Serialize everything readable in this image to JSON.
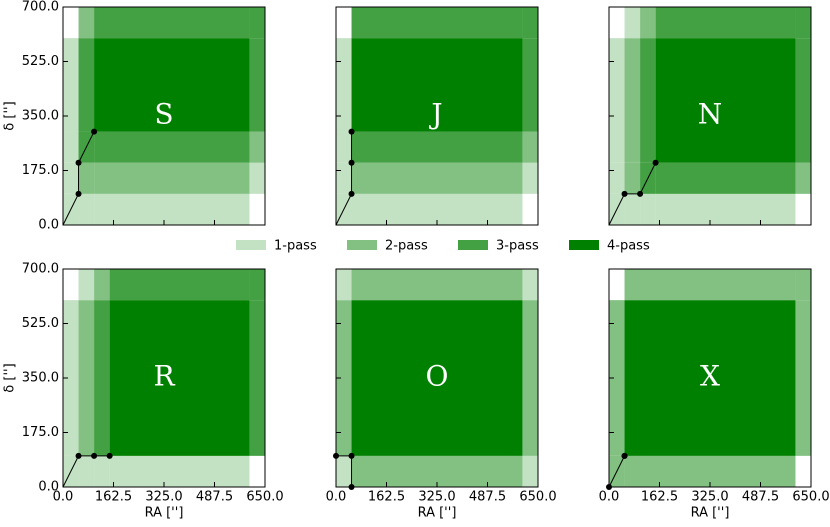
{
  "chart_data": [
    {
      "type": "dither",
      "title": "S",
      "x": [
        0,
        50,
        50,
        100
      ],
      "y": [
        0,
        100,
        200,
        300
      ],
      "field": [
        600,
        600
      ],
      "xlim": [
        0,
        650
      ],
      "ylim": [
        0,
        700
      ],
      "xticks": [
        {
          "value": 0,
          "label": "0.0"
        },
        162.5,
        {
          "value": 325,
          "label": "325.0"
        },
        487.5,
        {
          "value": 650,
          "label": "650.0"
        }
      ],
      "yticks": [
        {
          "value": 0,
          "label": "0.0"
        },
        {
          "value": 175,
          "label": "175.0"
        },
        {
          "value": 350,
          "label": "350.0"
        },
        {
          "value": 525,
          "label": "525.0"
        },
        {
          "value": 700,
          "label": "700.0"
        }
      ],
      "ylabel": "δ ['']"
    },
    {
      "type": "dither",
      "title": "J",
      "x": [
        0,
        50,
        50,
        50
      ],
      "y": [
        0,
        100,
        200,
        300
      ],
      "field": [
        600,
        600
      ],
      "xlim": [
        0,
        650
      ],
      "ylim": [
        0,
        700
      ],
      "xticks": [
        {
          "value": 0,
          "label": "0.0"
        },
        162.5,
        {
          "value": 325,
          "label": "325.0"
        },
        487.5,
        {
          "value": 650,
          "label": "650.0"
        }
      ],
      "yticks": [
        {
          "value": 0,
          "label": "0.0"
        },
        {
          "value": 175,
          "label": "175.0"
        },
        {
          "value": 350,
          "label": "350.0"
        },
        {
          "value": 525,
          "label": "525.0"
        },
        {
          "value": 700,
          "label": "700.0"
        }
      ]
    },
    {
      "type": "dither",
      "title": "N",
      "x": [
        0,
        50,
        100,
        150
      ],
      "y": [
        0,
        100,
        100,
        200
      ],
      "field": [
        600,
        600
      ],
      "xlim": [
        0,
        650
      ],
      "ylim": [
        0,
        700
      ],
      "xticks": [
        {
          "value": 0,
          "label": "0.0"
        },
        162.5,
        {
          "value": 325,
          "label": "325.0"
        },
        487.5,
        {
          "value": 650,
          "label": "650.0"
        }
      ],
      "yticks": [
        {
          "value": 0,
          "label": "0.0"
        },
        {
          "value": 175,
          "label": "175.0"
        },
        {
          "value": 350,
          "label": "350.0"
        },
        {
          "value": 525,
          "label": "525.0"
        },
        {
          "value": 700,
          "label": "700.0"
        }
      ]
    },
    {
      "type": "dither",
      "title": "R",
      "x": [
        0,
        50,
        100,
        150
      ],
      "y": [
        0,
        100,
        100,
        100
      ],
      "field": [
        600,
        600
      ],
      "xlim": [
        0,
        650
      ],
      "ylim": [
        0,
        700
      ],
      "xticks": [
        {
          "value": 0,
          "label": "0.0"
        },
        162.5,
        {
          "value": 325,
          "label": "325.0"
        },
        487.5,
        {
          "value": 650,
          "label": "650.0"
        }
      ],
      "yticks": [
        {
          "value": 0,
          "label": "0.0"
        },
        {
          "value": 175,
          "label": "175.0"
        },
        {
          "value": 350,
          "label": "350.0"
        },
        {
          "value": 525,
          "label": "525.0"
        },
        {
          "value": 700,
          "label": "700.0"
        }
      ],
      "ylabel": "δ ['']",
      "xlabel": "RA ['']"
    },
    {
      "type": "dither",
      "title": "O",
      "x": [
        0,
        0,
        50,
        50
      ],
      "y": [
        0,
        100,
        100,
        0
      ],
      "field": [
        600,
        600
      ],
      "xlim": [
        0,
        650
      ],
      "ylim": [
        0,
        700
      ],
      "xticks": [
        {
          "value": 0,
          "label": "0.0"
        },
        162.5,
        {
          "value": 325,
          "label": "325.0"
        },
        487.5,
        {
          "value": 650,
          "label": "650.0"
        }
      ],
      "yticks": [
        {
          "value": 0,
          "label": "0.0"
        },
        {
          "value": 175,
          "label": "175.0"
        },
        {
          "value": 350,
          "label": "350.0"
        },
        {
          "value": 525,
          "label": "525.0"
        },
        {
          "value": 700,
          "label": "700.0"
        }
      ],
      "xlabel": "RA ['']"
    },
    {
      "type": "dither",
      "title": "X",
      "x": [
        0,
        50,
        0,
        50
      ],
      "y": [
        0,
        100,
        0,
        100
      ],
      "field": [
        600,
        600
      ],
      "xlim": [
        0,
        650
      ],
      "ylim": [
        0,
        700
      ],
      "xticks": [
        {
          "value": 0,
          "label": "0.0"
        },
        162.5,
        {
          "value": 325,
          "label": "325.0"
        },
        487.5,
        {
          "value": 650,
          "label": "650.0"
        }
      ],
      "yticks": [
        {
          "value": 0,
          "label": "0.0"
        },
        {
          "value": 175,
          "label": "175.0"
        },
        {
          "value": 350,
          "label": "350.0"
        },
        {
          "value": 525,
          "label": "525.0"
        },
        {
          "value": 700,
          "label": "700.0"
        }
      ],
      "xlabel": "RA ['']"
    }
  ],
  "legend": [
    {
      "name": "1-pass",
      "color": "#c3e1c3"
    },
    {
      "name": "2-pass",
      "color": "#83c183"
    },
    {
      "name": "3-pass",
      "color": "#43a043"
    },
    {
      "name": "4-pass",
      "color": "#008000"
    }
  ]
}
